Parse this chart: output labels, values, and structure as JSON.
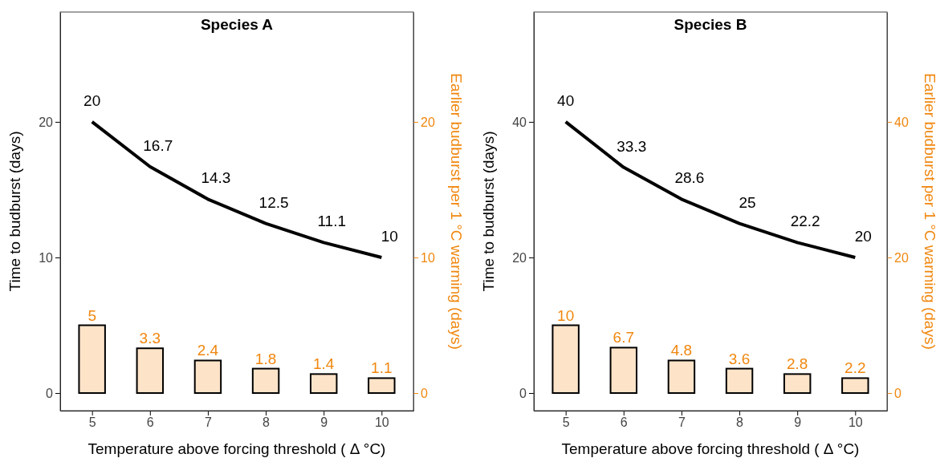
{
  "chart_data": [
    {
      "type": "line",
      "title": "Species A",
      "xlabel": "Temperature above forcing threshold ( Δ °C)",
      "ylabel": "Time to budburst (days)",
      "y2label": "Earlier budburst per 1 °C warming (days)",
      "x": [
        5,
        6,
        7,
        8,
        9,
        10
      ],
      "xlim": [
        4.45,
        10.55
      ],
      "xticks": [
        5,
        6,
        7,
        8,
        9,
        10
      ],
      "ylim": [
        -1.3,
        28.1
      ],
      "yticks": [
        0,
        10,
        20
      ],
      "y2lim": [
        -1.3,
        28.1
      ],
      "y2ticks": [
        0,
        10,
        20
      ],
      "data_labels": true,
      "grid": false,
      "series": [
        {
          "color": "#000000",
          "values": [
            20,
            16.7,
            14.3,
            12.5,
            11.1,
            10
          ]
        },
        {
          "type": "bar",
          "axis": "y2",
          "color": "#fde3c8",
          "values": [
            5,
            3.3,
            2.4,
            1.8,
            1.4,
            1.1
          ]
        }
      ]
    },
    {
      "type": "line",
      "title": "Species B",
      "xlabel": "Temperature above forcing threshold ( Δ °C)",
      "ylabel": "Time to budburst (days)",
      "y2label": "Earlier budburst per 1 °C warming (days)",
      "x": [
        5,
        6,
        7,
        8,
        9,
        10
      ],
      "xlim": [
        4.45,
        10.55
      ],
      "xticks": [
        5,
        6,
        7,
        8,
        9,
        10
      ],
      "ylim": [
        -2.6,
        56.2
      ],
      "yticks": [
        0,
        20,
        40
      ],
      "y2lim": [
        -2.6,
        56.2
      ],
      "y2ticks": [
        0,
        20,
        40
      ],
      "data_labels": true,
      "grid": false,
      "series": [
        {
          "color": "#000000",
          "values": [
            40,
            33.3,
            28.6,
            25,
            22.2,
            20
          ]
        },
        {
          "type": "bar",
          "axis": "y2",
          "color": "#fde3c8",
          "values": [
            10,
            6.7,
            4.8,
            3.6,
            2.8,
            2.2
          ]
        }
      ]
    }
  ]
}
